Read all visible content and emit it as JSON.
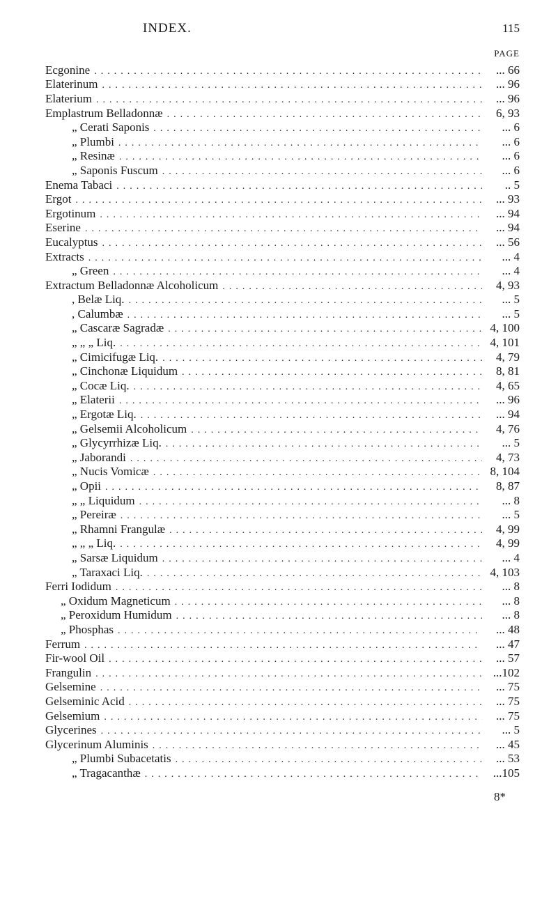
{
  "header": {
    "title": "INDEX.",
    "pageNumber": "115",
    "pageLabel": "PAGE"
  },
  "entries": [
    {
      "label": "Ecgonine",
      "indent": "indent-0",
      "page": "... 66"
    },
    {
      "label": "Elaterinum",
      "indent": "indent-0",
      "page": "... 96"
    },
    {
      "label": "Elaterium",
      "indent": "indent-0",
      "page": "... 96"
    },
    {
      "label": "Emplastrum Belladonnæ",
      "indent": "indent-0",
      "page": "6, 93"
    },
    {
      "label": "„        Cerati Saponis",
      "indent": "indent-1",
      "page": "... 6"
    },
    {
      "label": "„        Plumbi",
      "indent": "indent-1",
      "page": "... 6"
    },
    {
      "label": "„        Resinæ",
      "indent": "indent-1",
      "page": "... 6"
    },
    {
      "label": "„        Saponis Fuscum",
      "indent": "indent-1",
      "page": "... 6"
    },
    {
      "label": "Enema Tabaci",
      "indent": "indent-0",
      "page": ".. 5"
    },
    {
      "label": "Ergot",
      "indent": "indent-0",
      "page": "... 93"
    },
    {
      "label": "Ergotinum",
      "indent": "indent-0",
      "page": "... 94"
    },
    {
      "label": "Eserine",
      "indent": "indent-0",
      "page": "... 94"
    },
    {
      "label": "Eucalyptus",
      "indent": "indent-0",
      "page": "... 56"
    },
    {
      "label": "Extracts",
      "indent": "indent-0",
      "page": "... 4"
    },
    {
      "label": "„        Green",
      "indent": "indent-1",
      "page": "... 4"
    },
    {
      "label": "Extractum Belladonnæ Alcoholicum",
      "indent": "indent-0",
      "page": "4, 93"
    },
    {
      "label": ",        Belæ Liq.",
      "indent": "indent-1",
      "page": "... 5"
    },
    {
      "label": ",        Calumbæ",
      "indent": "indent-1",
      "page": "... 5"
    },
    {
      "label": "„        Cascaræ Sagradæ",
      "indent": "indent-1",
      "page": "4, 100"
    },
    {
      "label": "„          „        „      Liq.",
      "indent": "indent-1",
      "page": "4, 101"
    },
    {
      "label": "„        Cimicifugæ Liq.",
      "indent": "indent-1",
      "page": "4, 79"
    },
    {
      "label": "„        Cinchonæ Liquidum",
      "indent": "indent-1",
      "page": "8, 81"
    },
    {
      "label": "„        Cocæ Liq.",
      "indent": "indent-1",
      "page": "4, 65"
    },
    {
      "label": "„        Elaterii",
      "indent": "indent-1",
      "page": "... 96"
    },
    {
      "label": "„        Ergotæ Liq.",
      "indent": "indent-1",
      "page": "... 94"
    },
    {
      "label": "„        Gelsemii Alcoholicum",
      "indent": "indent-1",
      "page": "4, 76"
    },
    {
      "label": "„        Glycyrrhizæ Liq.",
      "indent": "indent-1",
      "page": "... 5"
    },
    {
      "label": "„        Jaborandi",
      "indent": "indent-1",
      "page": "4, 73"
    },
    {
      "label": "„        Nucis Vomicæ",
      "indent": "indent-1",
      "page": "8, 104"
    },
    {
      "label": "„        Opii",
      "indent": "indent-1",
      "page": "8, 87"
    },
    {
      "label": "„          „   Liquidum",
      "indent": "indent-1",
      "page": "... 8"
    },
    {
      "label": "„        Pereiræ",
      "indent": "indent-1",
      "page": "... 5"
    },
    {
      "label": "„        Rhamni Frangulæ",
      "indent": "indent-1",
      "page": "4, 99"
    },
    {
      "label": "„          „        „      Liq.",
      "indent": "indent-1",
      "page": "4, 99"
    },
    {
      "label": "„        Sarsæ Liquidum",
      "indent": "indent-1",
      "page": "... 4"
    },
    {
      "label": "„        Taraxaci Liq.",
      "indent": "indent-1",
      "page": "4, 103"
    },
    {
      "label": "Ferri Iodidum",
      "indent": "indent-0",
      "page": "... 8"
    },
    {
      "label": "„  Oxidum Magneticum",
      "indent": "indent-1b",
      "page": "... 8"
    },
    {
      "label": "„  Peroxidum Humidum",
      "indent": "indent-1b",
      "page": "... 8"
    },
    {
      "label": "„  Phosphas",
      "indent": "indent-1b",
      "page": "... 48"
    },
    {
      "label": "Ferrum",
      "indent": "indent-0",
      "page": "... 47"
    },
    {
      "label": "Fir-wool Oil",
      "indent": "indent-0",
      "page": "... 57"
    },
    {
      "label": "Frangulin",
      "indent": "indent-0",
      "page": "...102"
    },
    {
      "label": "Gelsemine",
      "indent": "indent-0",
      "page": "... 75"
    },
    {
      "label": "Gelseminic Acid",
      "indent": "indent-0",
      "page": "... 75"
    },
    {
      "label": "Gelsemium",
      "indent": "indent-0",
      "page": "... 75"
    },
    {
      "label": "Glycerines",
      "indent": "indent-0",
      "page": "... 5"
    },
    {
      "label": "Glycerinum Aluminis",
      "indent": "indent-0",
      "page": "... 45"
    },
    {
      "label": "„        Plumbi Subacetatis",
      "indent": "indent-1",
      "page": "... 53"
    },
    {
      "label": "„        Tragacanthæ",
      "indent": "indent-1",
      "page": "...105"
    }
  ],
  "footerMark": "8*",
  "dots": "..........................................................................................."
}
